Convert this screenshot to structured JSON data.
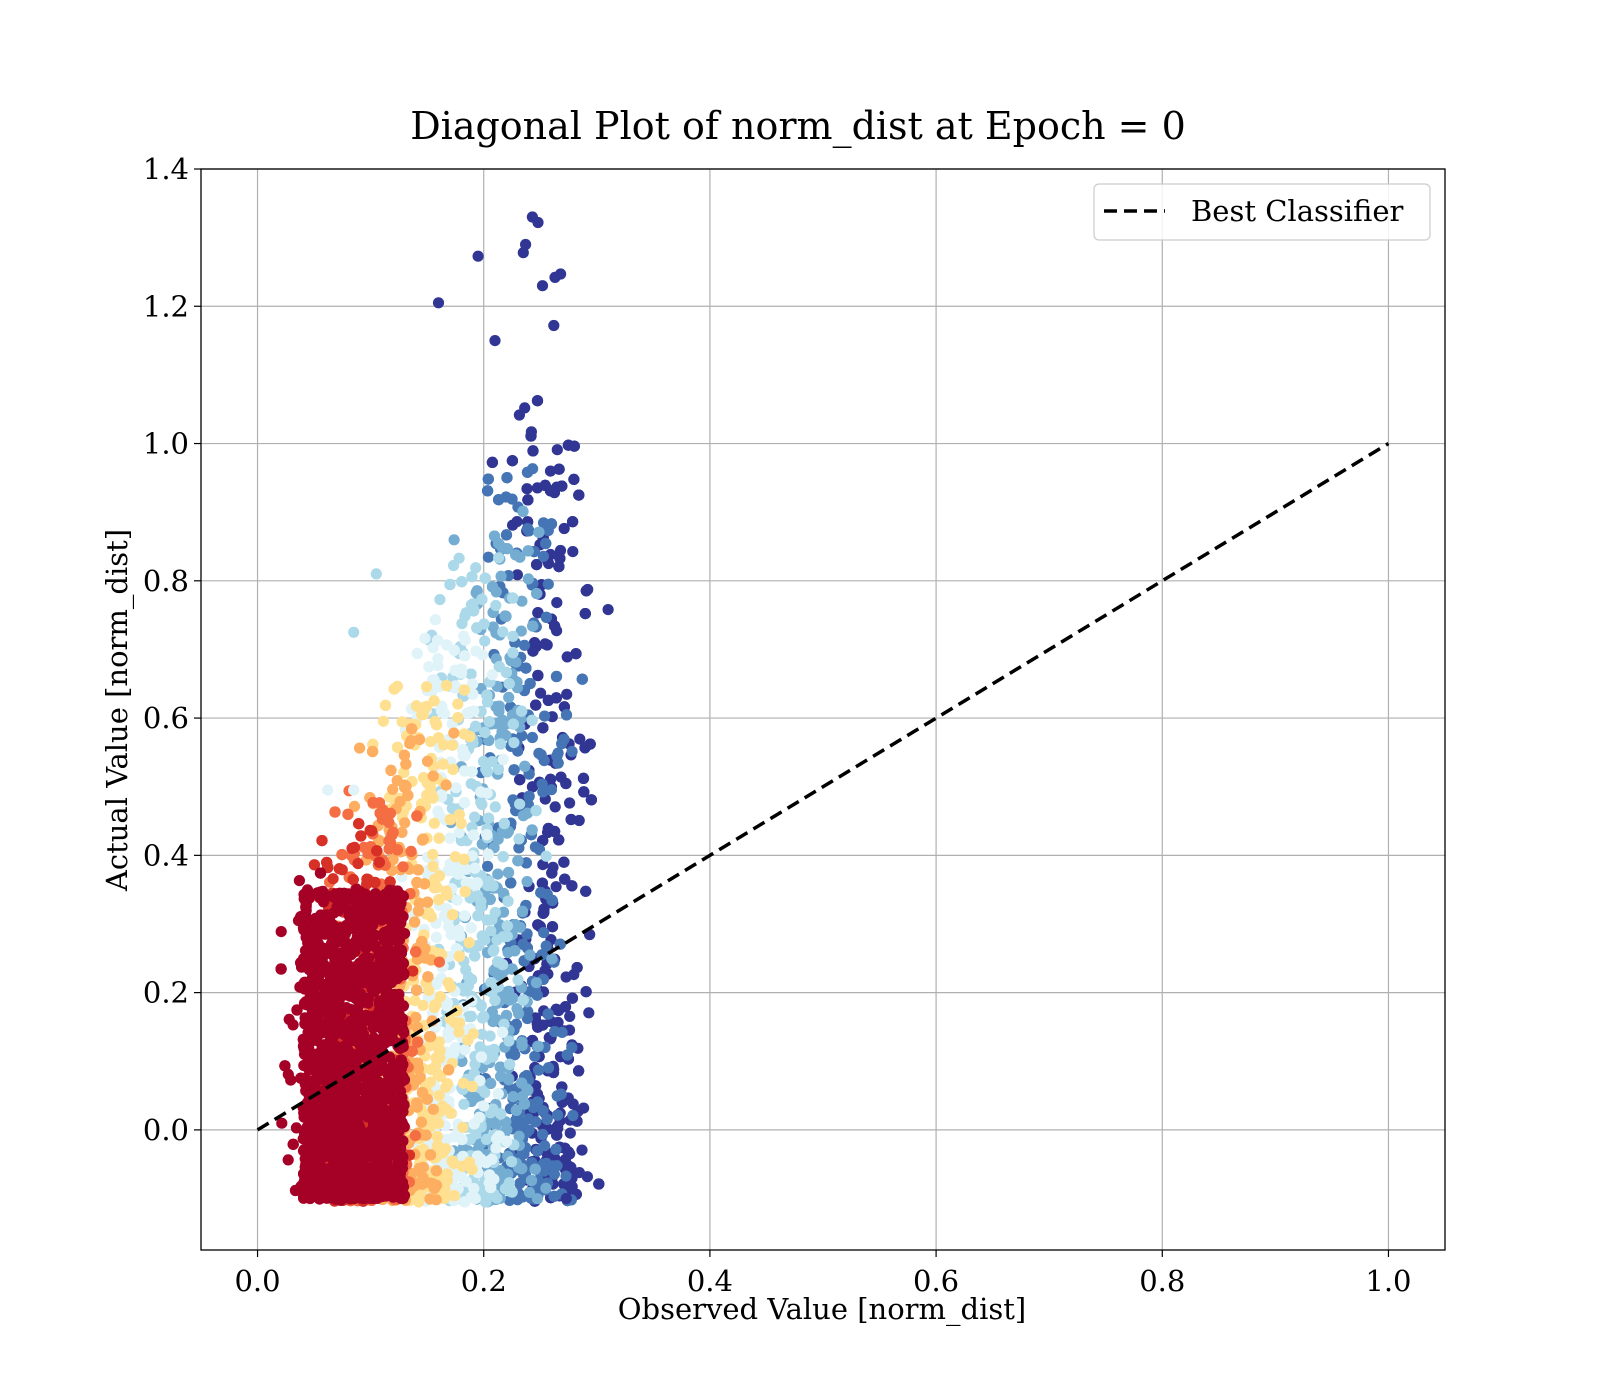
{
  "chart_data": {
    "type": "scatter",
    "title": "Diagonal Plot of norm_dist at Epoch = 0",
    "xlabel": "Observed Value [norm_dist]",
    "ylabel": "Actual Value [norm_dist]",
    "xlim": [
      -0.05,
      1.05
    ],
    "ylim": [
      -0.175,
      1.4
    ],
    "xticks": [
      "0.0",
      "0.2",
      "0.4",
      "0.6",
      "0.8",
      "1.0"
    ],
    "yticks": [
      "0.0",
      "0.2",
      "0.4",
      "0.6",
      "0.8",
      "1.0",
      "1.2",
      "1.4"
    ],
    "grid": true,
    "legend": {
      "placement": "top-right",
      "entries": [
        {
          "label": "Best Classifier",
          "style": "dashed",
          "color": "#000000"
        }
      ]
    },
    "reference_line": {
      "name": "Best Classifier",
      "x": [
        0.0,
        1.0
      ],
      "y": [
        0.0,
        1.0
      ]
    },
    "colormap": [
      "#a50026",
      "#d73027",
      "#f46d43",
      "#fdae61",
      "#fee090",
      "#e0f3f8",
      "#abd9e9",
      "#74add1",
      "#4575b4",
      "#313695"
    ],
    "cloud": {
      "x_range": [
        0.02,
        0.31
      ],
      "y_range": [
        -0.105,
        1.33
      ],
      "outliers": [
        {
          "x": 0.243,
          "y": 1.33
        },
        {
          "x": 0.248,
          "y": 1.322
        },
        {
          "x": 0.195,
          "y": 1.273
        },
        {
          "x": 0.237,
          "y": 1.29
        },
        {
          "x": 0.235,
          "y": 1.278
        },
        {
          "x": 0.268,
          "y": 1.247
        },
        {
          "x": 0.263,
          "y": 1.242
        },
        {
          "x": 0.252,
          "y": 1.23
        },
        {
          "x": 0.16,
          "y": 1.205
        },
        {
          "x": 0.262,
          "y": 1.172
        },
        {
          "x": 0.21,
          "y": 1.15
        },
        {
          "x": 0.31,
          "y": 0.758
        },
        {
          "x": 0.273,
          "y": -0.1
        },
        {
          "x": 0.105,
          "y": 0.81
        },
        {
          "x": 0.085,
          "y": 0.725
        },
        {
          "x": 0.062,
          "y": 0.495
        },
        {
          "x": 0.085,
          "y": 0.495
        }
      ]
    }
  }
}
